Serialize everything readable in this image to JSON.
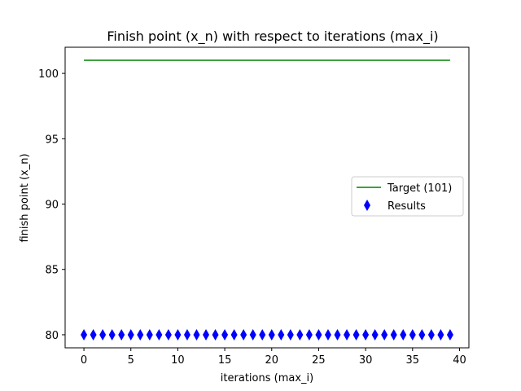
{
  "chart_data": {
    "type": "line",
    "title": "Finish point (x_n) with respect to iterations (max_i)",
    "xlabel": "iterations (max_i)",
    "ylabel": "finish point (x_n)",
    "xlim": [
      -2,
      41
    ],
    "ylim": [
      79,
      102
    ],
    "xticks": [
      0,
      5,
      10,
      15,
      20,
      25,
      30,
      35,
      40
    ],
    "yticks": [
      80,
      85,
      90,
      95,
      100
    ],
    "grid": false,
    "legend_position": "center-right",
    "series": [
      {
        "name": "Target (101)",
        "kind": "line",
        "color": "#008000",
        "x": [
          0,
          39
        ],
        "y": [
          101,
          101
        ]
      },
      {
        "name": "Results",
        "kind": "scatter",
        "marker": "thin-diamond",
        "color": "#0000ff",
        "x": [
          0,
          1,
          2,
          3,
          4,
          5,
          6,
          7,
          8,
          9,
          10,
          11,
          12,
          13,
          14,
          15,
          16,
          17,
          18,
          19,
          20,
          21,
          22,
          23,
          24,
          25,
          26,
          27,
          28,
          29,
          30,
          31,
          32,
          33,
          34,
          35,
          36,
          37,
          38,
          39
        ],
        "y": [
          80,
          80,
          80,
          80,
          80,
          80,
          80,
          80,
          80,
          80,
          80,
          80,
          80,
          80,
          80,
          80,
          80,
          80,
          80,
          80,
          80,
          80,
          80,
          80,
          80,
          80,
          80,
          80,
          80,
          80,
          80,
          80,
          80,
          80,
          80,
          80,
          80,
          80,
          80,
          80
        ]
      }
    ]
  }
}
